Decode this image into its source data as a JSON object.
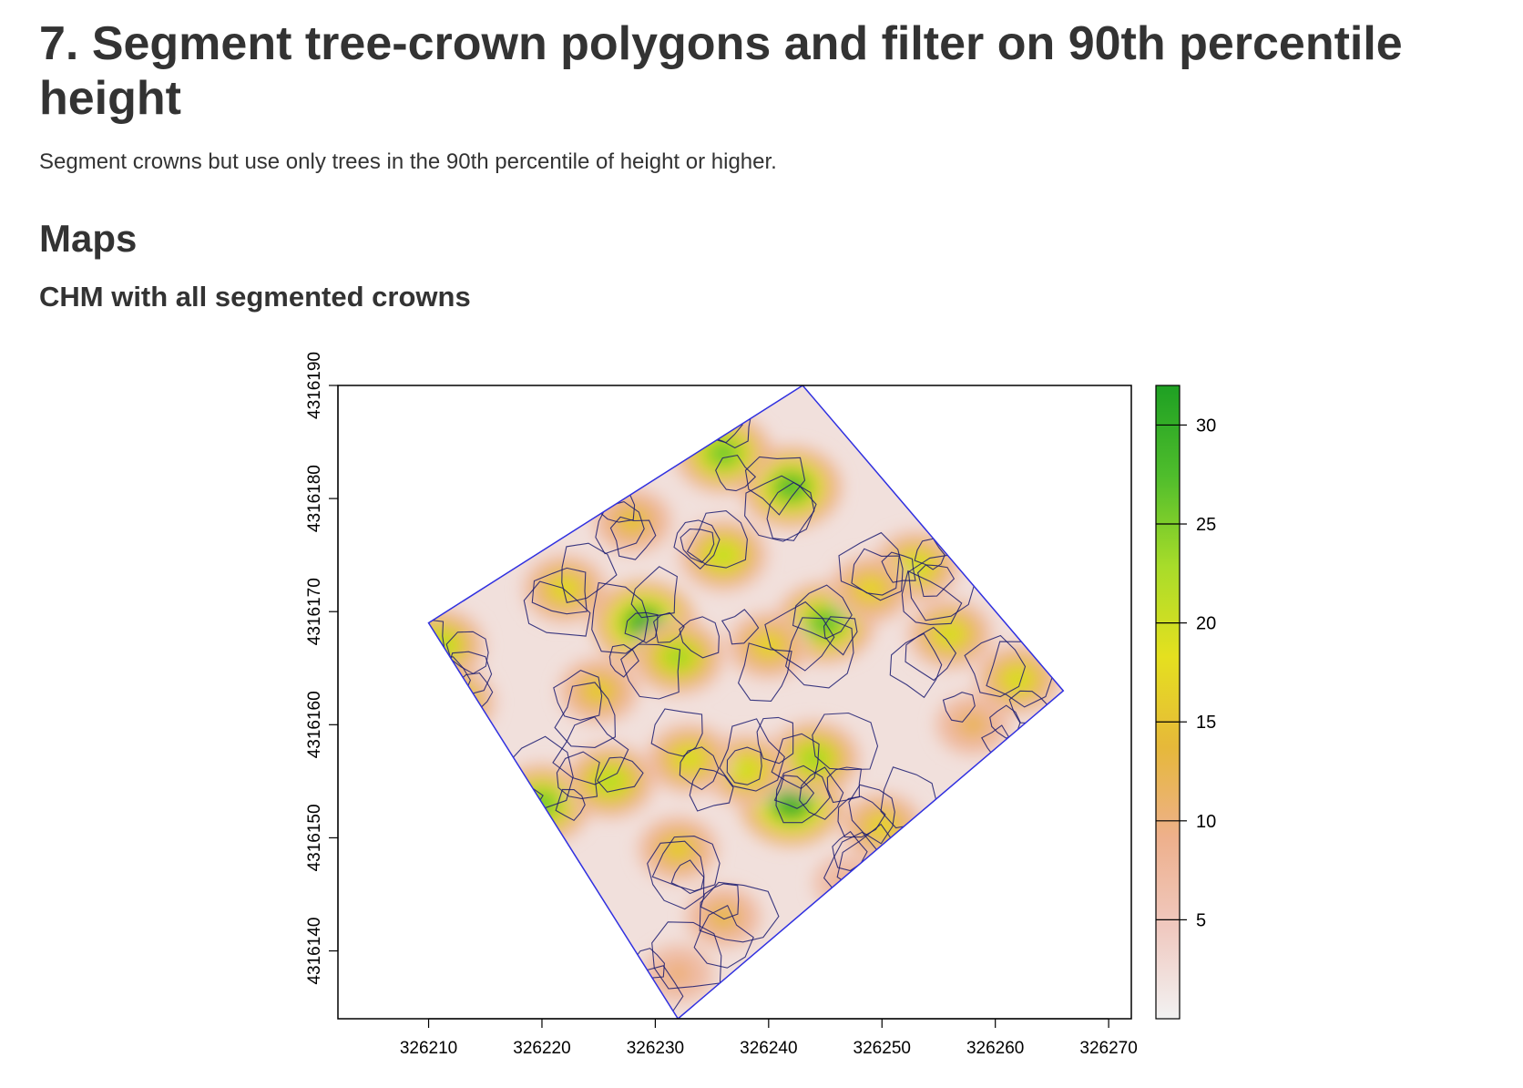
{
  "page": {
    "title": "7. Segment tree-crown polygons and filter on 90th percentile height",
    "description": "Segment crowns but use only trees in the 90th percentile of height or higher.",
    "section": "Maps",
    "subsection": "CHM with all segmented crowns"
  },
  "colors": {
    "crown_outline": "#3030e0",
    "colorscale": [
      "#f2f2f2",
      "#f0c9c0",
      "#eeb08c",
      "#e6b83a",
      "#e5e01f",
      "#a8dc2a",
      "#4fbd2c",
      "#1ea023"
    ]
  },
  "chart_data": {
    "type": "heatmap",
    "title": "",
    "xlabel": "",
    "ylabel": "",
    "xlim": [
      326202,
      326272
    ],
    "ylim": [
      4316134,
      4316190
    ],
    "x_ticks": [
      326210,
      326220,
      326230,
      326240,
      326250,
      326260,
      326270
    ],
    "y_ticks": [
      4316140,
      4316150,
      4316160,
      4316170,
      4316180,
      4316190
    ],
    "legend": {
      "position": "right",
      "type": "colorbar",
      "range": [
        0,
        32
      ],
      "ticks": [
        5,
        10,
        15,
        20,
        25,
        30
      ]
    },
    "raster_footprint_corners": [
      [
        326232,
        4316134
      ],
      [
        326210,
        4316169
      ],
      [
        326243,
        4316190
      ],
      [
        326266,
        4316163
      ]
    ],
    "overlay": "segmented crown polygons (blue outlines)",
    "high_canopy_centers": [
      {
        "x": 326229,
        "y": 4316169,
        "value": 31
      },
      {
        "x": 326242,
        "y": 4316153,
        "value": 31
      },
      {
        "x": 326242,
        "y": 4316181,
        "value": 29
      },
      {
        "x": 326236,
        "y": 4316184,
        "value": 27
      },
      {
        "x": 326245,
        "y": 4316169,
        "value": 28
      },
      {
        "x": 326220,
        "y": 4316153,
        "value": 27
      },
      {
        "x": 326232,
        "y": 4316166,
        "value": 24
      },
      {
        "x": 326211,
        "y": 4316167,
        "value": 23
      },
      {
        "x": 326212,
        "y": 4316162,
        "value": 22
      },
      {
        "x": 326226,
        "y": 4316155,
        "value": 23
      },
      {
        "x": 326236,
        "y": 4316175,
        "value": 22
      },
      {
        "x": 326253,
        "y": 4316174,
        "value": 21
      },
      {
        "x": 326256,
        "y": 4316168,
        "value": 20
      },
      {
        "x": 326244,
        "y": 4316157,
        "value": 24
      },
      {
        "x": 326238,
        "y": 4316156,
        "value": 21
      },
      {
        "x": 326233,
        "y": 4316157,
        "value": 20
      },
      {
        "x": 326222,
        "y": 4316172,
        "value": 19
      },
      {
        "x": 326250,
        "y": 4316151,
        "value": 18
      },
      {
        "x": 326262,
        "y": 4316164,
        "value": 20
      },
      {
        "x": 326249,
        "y": 4316172,
        "value": 18
      },
      {
        "x": 326228,
        "y": 4316178,
        "value": 16
      },
      {
        "x": 326232,
        "y": 4316149,
        "value": 17
      },
      {
        "x": 326236,
        "y": 4316143,
        "value": 14
      },
      {
        "x": 326240,
        "y": 4316167,
        "value": 18
      },
      {
        "x": 326225,
        "y": 4316163,
        "value": 17
      },
      {
        "x": 326258,
        "y": 4316160,
        "value": 13
      },
      {
        "x": 326247,
        "y": 4316146,
        "value": 10
      },
      {
        "x": 326232,
        "y": 4316138,
        "value": 11
      }
    ]
  }
}
